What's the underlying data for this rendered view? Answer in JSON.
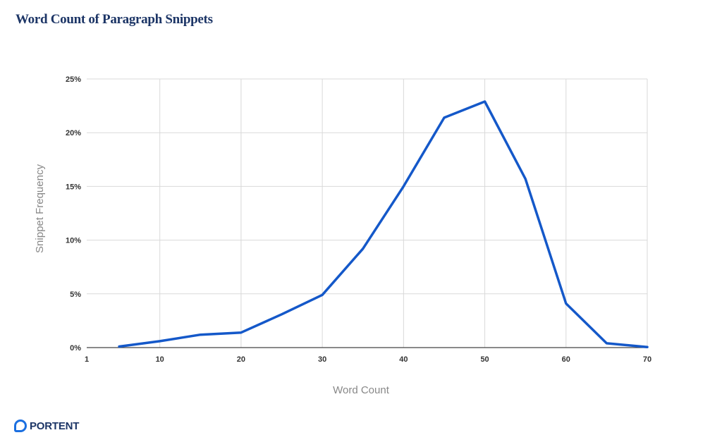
{
  "chart_data": {
    "type": "line",
    "title": "Word Count of Paragraph Snippets",
    "xlabel": "Word Count",
    "ylabel": "Snippet Frequency",
    "xlim": [
      1,
      70
    ],
    "ylim": [
      0,
      25
    ],
    "x_ticks": [
      1,
      10,
      20,
      30,
      40,
      50,
      60,
      70
    ],
    "y_ticks": [
      0,
      5,
      10,
      15,
      20,
      25
    ],
    "y_tick_labels": [
      "0%",
      "5%",
      "10%",
      "15%",
      "20%",
      "25%"
    ],
    "grid": true,
    "legend": "none",
    "series": [
      {
        "color": "#1458c9",
        "x": [
          5,
          10,
          15,
          20,
          25,
          30,
          35,
          40,
          45,
          50,
          55,
          60,
          65,
          70
        ],
        "y": [
          0.1,
          0.6,
          1.2,
          1.4,
          3.1,
          4.9,
          9.2,
          15.0,
          21.4,
          22.9,
          15.7,
          4.1,
          0.4,
          0.05
        ]
      }
    ]
  },
  "logo": {
    "text": "PORTENT",
    "brand_color": "#1b6fe0"
  }
}
